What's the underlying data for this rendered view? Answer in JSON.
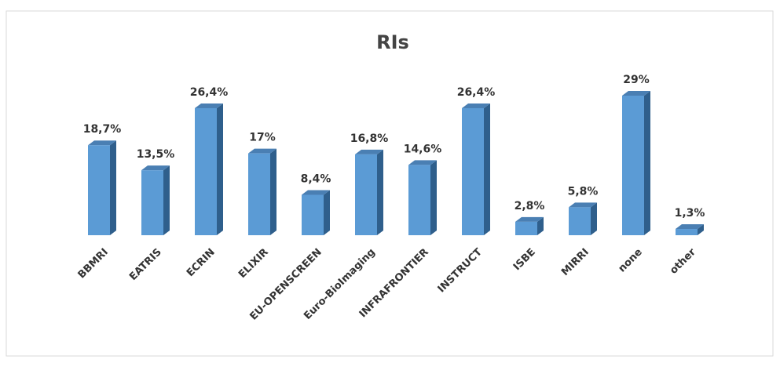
{
  "chart_data": {
    "type": "bar3d",
    "title": "RIs",
    "categories": [
      "BBMRI",
      "EATRIS",
      "ECRIN",
      "ELIXIR",
      "EU-OPENSCREEN",
      "Euro-BioImaging",
      "INFRAFRONTIER",
      "INSTRUCT",
      "ISBE",
      "MIRRI",
      "none",
      "other"
    ],
    "values": [
      18.7,
      13.5,
      26.4,
      17,
      8.4,
      16.8,
      14.6,
      26.4,
      2.8,
      5.8,
      29,
      1.3
    ],
    "value_labels": [
      "18,7%",
      "13,5%",
      "26,4%",
      "17%",
      "8,4%",
      "16,8%",
      "14,6%",
      "26,4%",
      "2,8%",
      "5,8%",
      "29%",
      "1,3%"
    ],
    "color": "#5b9bd5"
  }
}
